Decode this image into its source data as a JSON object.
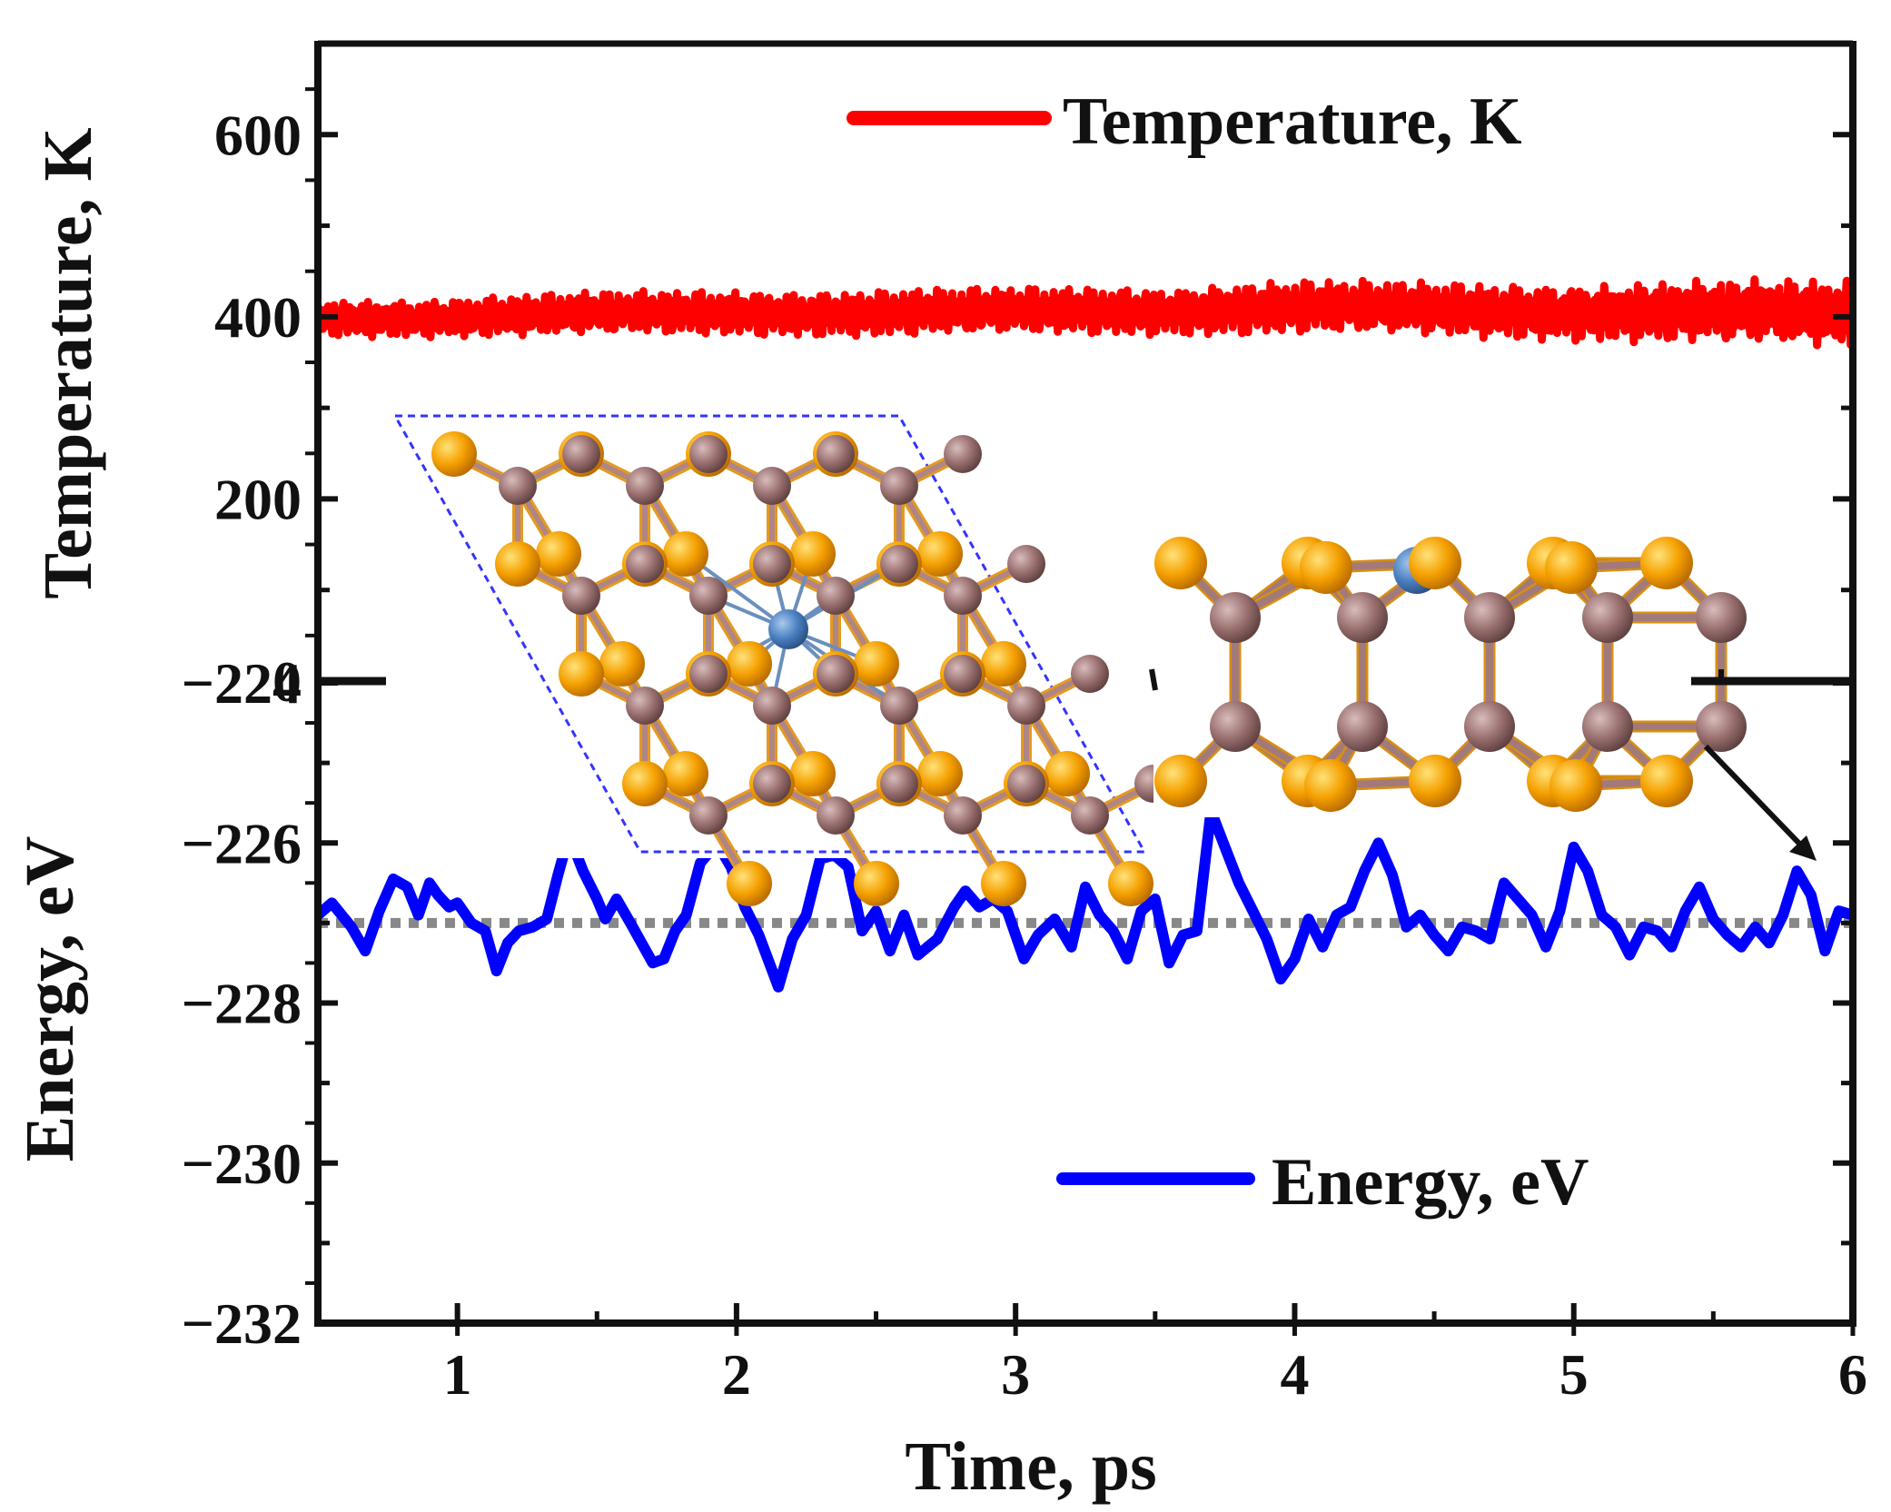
{
  "chart_data": [
    {
      "type": "line",
      "panel": "top",
      "title": "",
      "xlabel": "",
      "ylabel": "Temperature, K",
      "xlim": [
        0.5,
        6
      ],
      "ylim": [
        0,
        700
      ],
      "yticks": [
        0,
        200,
        400,
        600
      ],
      "yticks_minor": [
        100,
        300,
        500
      ],
      "legend": "top-right",
      "series": [
        {
          "name": "Temperature, K",
          "color": "#ff0000",
          "x": [
            0.5,
            1.0,
            1.5,
            2.0,
            2.5,
            3.0,
            3.5,
            4.0,
            4.5,
            5.0,
            5.5,
            6.0
          ],
          "y": [
            398,
            400,
            403,
            405,
            404,
            406,
            407,
            410,
            408,
            406,
            404,
            403
          ],
          "fluctuation_amplitude": [
            20,
            22,
            24,
            25,
            26,
            26,
            27,
            30,
            30,
            32,
            35,
            38
          ]
        }
      ]
    },
    {
      "type": "line",
      "panel": "bottom",
      "title": "",
      "xlabel": "Time, ps",
      "ylabel": "Energy, eV",
      "xlim": [
        0.5,
        6
      ],
      "ylim": [
        -232,
        -224
      ],
      "xticks": [
        1,
        2,
        3,
        4,
        5,
        6
      ],
      "xticks_minor": [
        1.5,
        2.5,
        3.5,
        4.5,
        5.5
      ],
      "yticks": [
        -232,
        -230,
        -228,
        -226,
        -224
      ],
      "yticks_minor": [
        -231,
        -229,
        -227,
        -225
      ],
      "reference_line": {
        "y": -227,
        "style": "dotted",
        "color": "#888888"
      },
      "legend": "bottom-right",
      "series": [
        {
          "name": "Energy, eV",
          "color": "#0000ff",
          "x": [
            0.5,
            0.55,
            0.62,
            0.67,
            0.72,
            0.77,
            0.82,
            0.86,
            0.9,
            0.93,
            0.97,
            1.0,
            1.05,
            1.1,
            1.14,
            1.18,
            1.22,
            1.27,
            1.32,
            1.36,
            1.4,
            1.45,
            1.5,
            1.53,
            1.57,
            1.62,
            1.66,
            1.7,
            1.74,
            1.78,
            1.82,
            1.87,
            1.93,
            1.98,
            2.03,
            2.08,
            2.15,
            2.2,
            2.25,
            2.3,
            2.35,
            2.4,
            2.45,
            2.5,
            2.55,
            2.6,
            2.65,
            2.72,
            2.78,
            2.82,
            2.87,
            2.92,
            2.97,
            3.03,
            3.08,
            3.14,
            3.2,
            3.25,
            3.3,
            3.35,
            3.4,
            3.45,
            3.5,
            3.55,
            3.6,
            3.65,
            3.7,
            3.75,
            3.8,
            3.85,
            3.9,
            3.95,
            4.0,
            4.05,
            4.1,
            4.15,
            4.2,
            4.25,
            4.3,
            4.35,
            4.4,
            4.45,
            4.5,
            4.55,
            4.6,
            4.65,
            4.7,
            4.75,
            4.8,
            4.85,
            4.9,
            4.95,
            5.0,
            5.05,
            5.1,
            5.15,
            5.2,
            5.25,
            5.3,
            5.35,
            5.4,
            5.45,
            5.5,
            5.55,
            5.6,
            5.65,
            5.7,
            5.75,
            5.8,
            5.85,
            5.9,
            5.95,
            6.0
          ],
          "y": [
            -226.9,
            -226.75,
            -227.05,
            -227.35,
            -226.85,
            -226.45,
            -226.55,
            -226.9,
            -226.5,
            -226.65,
            -226.8,
            -226.75,
            -227.0,
            -227.1,
            -227.6,
            -227.25,
            -227.1,
            -227.05,
            -226.95,
            -226.4,
            -225.9,
            -226.35,
            -226.7,
            -226.95,
            -226.7,
            -227.0,
            -227.25,
            -227.5,
            -227.45,
            -227.1,
            -226.9,
            -226.25,
            -226.0,
            -226.3,
            -226.8,
            -227.15,
            -227.8,
            -227.2,
            -226.9,
            -226.2,
            -226.15,
            -226.3,
            -227.1,
            -226.85,
            -227.35,
            -226.9,
            -227.4,
            -227.2,
            -226.8,
            -226.6,
            -226.8,
            -226.7,
            -226.85,
            -227.45,
            -227.15,
            -226.95,
            -227.3,
            -226.55,
            -226.9,
            -227.1,
            -227.45,
            -226.85,
            -226.7,
            -227.5,
            -227.15,
            -227.1,
            -225.6,
            -226.05,
            -226.5,
            -226.85,
            -227.2,
            -227.7,
            -227.45,
            -226.95,
            -227.3,
            -226.9,
            -226.8,
            -226.35,
            -226.0,
            -226.4,
            -227.05,
            -226.9,
            -227.15,
            -227.35,
            -227.05,
            -227.1,
            -227.2,
            -226.5,
            -226.7,
            -226.9,
            -227.3,
            -226.85,
            -226.05,
            -226.35,
            -226.9,
            -227.05,
            -227.4,
            -227.05,
            -227.1,
            -227.3,
            -226.85,
            -226.55,
            -226.95,
            -227.15,
            -227.3,
            -227.05,
            -227.25,
            -226.9,
            -226.35,
            -226.65,
            -227.35,
            -226.85,
            -226.9
          ]
        }
      ]
    }
  ],
  "insets": {
    "top_view": {
      "description_colors": {
        "sulfur": "#f5a000",
        "carbon": "#9a7070",
        "dopant": "#4a80c0",
        "cell": "#3333ff"
      }
    },
    "side_view": {
      "description_colors": {
        "sulfur": "#f5a000",
        "carbon": "#9a7070",
        "dopant": "#4a80c0"
      }
    }
  }
}
